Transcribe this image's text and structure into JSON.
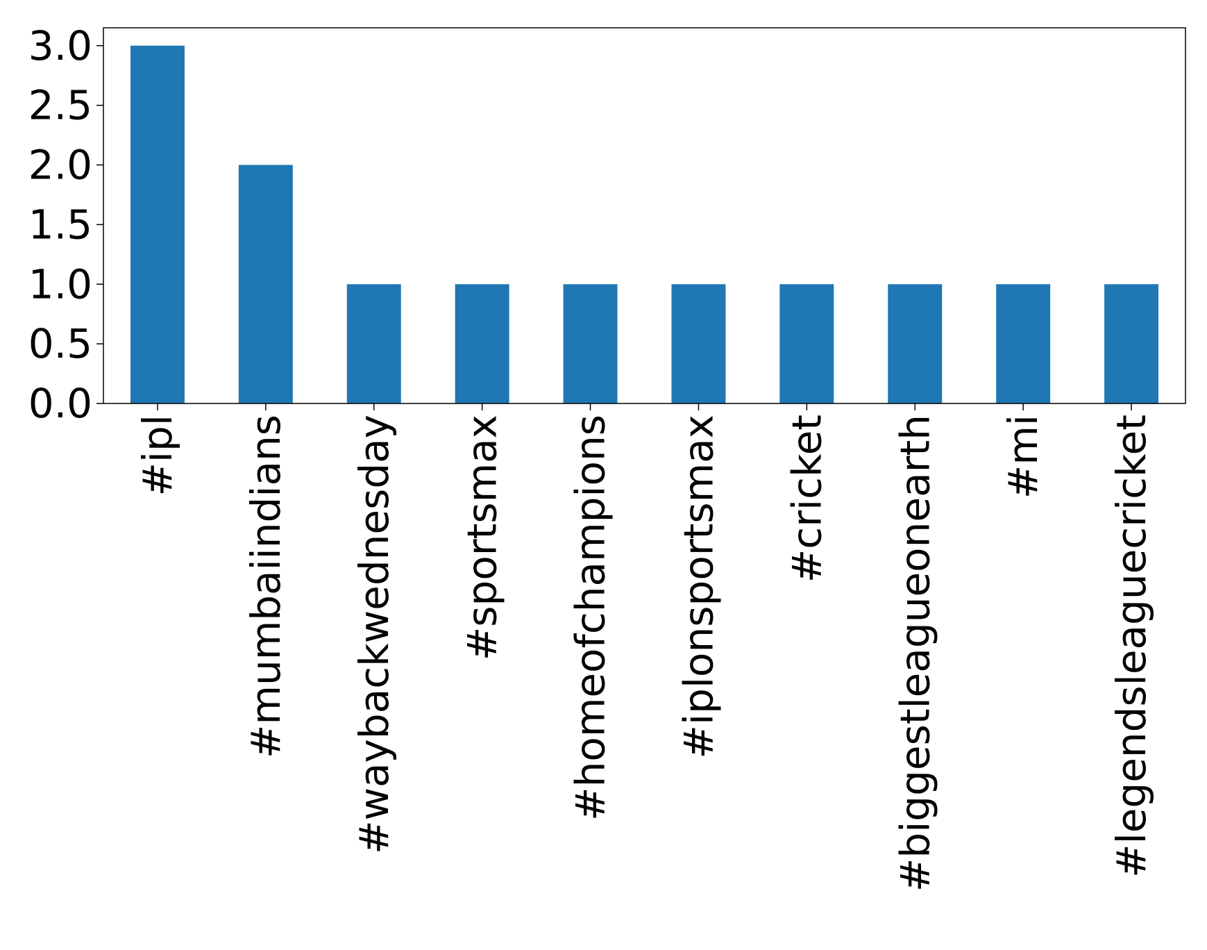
{
  "chart_data": {
    "type": "bar",
    "categories": [
      "#ipl",
      "#mumbaiindians",
      "#waybackwednesday",
      "#sportsmax",
      "#homeofchampions",
      "#iplonsportsmax",
      "#cricket",
      "#biggestleagueonearth",
      "#mi",
      "#legendsleaguecricket"
    ],
    "values": [
      3,
      2,
      1,
      1,
      1,
      1,
      1,
      1,
      1,
      1
    ],
    "color": "#1f77b4",
    "ylim": [
      0,
      3.15
    ],
    "yticks": [
      {
        "value": 0,
        "label": "0.0"
      },
      {
        "value": 0.5,
        "label": "0.5"
      },
      {
        "value": 1,
        "label": "1.0"
      },
      {
        "value": 1.5,
        "label": "1.5"
      },
      {
        "value": 2,
        "label": "2.0"
      },
      {
        "value": 2.5,
        "label": "2.5"
      },
      {
        "value": 3,
        "label": "3.0"
      }
    ],
    "grid": false
  }
}
